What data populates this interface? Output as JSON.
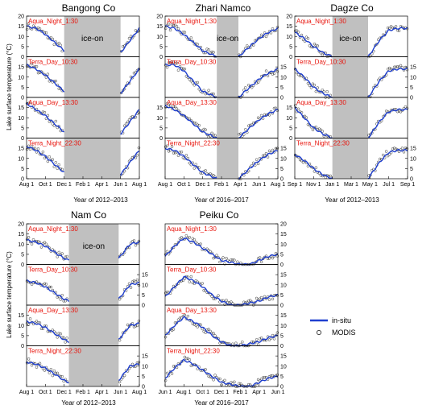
{
  "figure": {
    "y_axis_label": "Lake surface temperature (°C)",
    "legend": {
      "insitu": "in-situ",
      "modis": "MODIS"
    },
    "colors": {
      "insitu": "#1f3fcf",
      "label": "#e8140c",
      "ice": "#c0c0c0"
    }
  },
  "chart_data": [
    {
      "type": "line",
      "title": "Bangong Co",
      "xlabel": "Year of 2012–2013",
      "x_ticks": [
        "Aug 1",
        "Oct 1",
        "Dec 1",
        "Feb 1",
        "Apr 1",
        "Jun 1",
        "Aug 1"
      ],
      "x_range_months": [
        0,
        12
      ],
      "ice_on_label": "ice-on",
      "ice_on_months": [
        4.0,
        10.0
      ],
      "y_ticks": [
        0,
        5,
        10,
        15,
        20
      ],
      "y_axis_side": "left",
      "panels": [
        {
          "label": "Aqua_Night_1:30",
          "insitu": [
            [
              0,
              15
            ],
            [
              1,
              14
            ],
            [
              2,
              11
            ],
            [
              3,
              7
            ],
            [
              4,
              3
            ],
            [
              10,
              2
            ],
            [
              11,
              8
            ],
            [
              12,
              14
            ]
          ]
        },
        {
          "label": "Terra_Day_10:30",
          "insitu": [
            [
              0,
              16
            ],
            [
              1,
              14
            ],
            [
              2,
              11
            ],
            [
              3,
              7
            ],
            [
              4,
              3
            ],
            [
              10,
              2
            ],
            [
              11,
              8
            ],
            [
              12,
              14
            ]
          ]
        },
        {
          "label": "Aqua_Day_13:30",
          "insitu": [
            [
              0,
              17
            ],
            [
              1,
              14
            ],
            [
              2,
              11
            ],
            [
              3,
              7
            ],
            [
              4,
              3
            ],
            [
              10,
              2
            ],
            [
              11,
              8
            ],
            [
              12,
              14
            ]
          ]
        },
        {
          "label": "Terra_Night_22:30",
          "insitu": [
            [
              0,
              16
            ],
            [
              1,
              14
            ],
            [
              2,
              11
            ],
            [
              3,
              7
            ],
            [
              4,
              3
            ],
            [
              10,
              2
            ],
            [
              11,
              8
            ],
            [
              12,
              14
            ]
          ]
        }
      ]
    },
    {
      "type": "line",
      "title": "Zhari Namco",
      "xlabel": "Year of 2016–2017",
      "x_ticks": [
        "Aug 1",
        "Oct 1",
        "Dec 1",
        "Feb 1",
        "Apr 1",
        "Jun 1",
        "Aug 1"
      ],
      "x_range_months": [
        0,
        12
      ],
      "ice_on_label": "ice-on",
      "ice_on_months": [
        5.5,
        7.8
      ],
      "y_ticks": [
        0,
        5,
        10,
        15,
        20
      ],
      "y_axis_side": "alternate",
      "panels": [
        {
          "label": "Aqua_Night_1:30",
          "insitu": [
            [
              0,
              15
            ],
            [
              1,
              14
            ],
            [
              2,
              11
            ],
            [
              3,
              7
            ],
            [
              4,
              3
            ],
            [
              5.5,
              0
            ],
            [
              7.8,
              0
            ],
            [
              9,
              5
            ],
            [
              10,
              9
            ],
            [
              11,
              12
            ],
            [
              12,
              14
            ]
          ]
        },
        {
          "label": "Terra_Day_10:30",
          "insitu": [
            [
              0,
              16
            ],
            [
              1,
              16
            ],
            [
              2,
              13
            ],
            [
              3,
              8
            ],
            [
              4,
              3
            ],
            [
              5.5,
              0
            ],
            [
              7.8,
              0
            ],
            [
              9,
              5
            ],
            [
              10,
              9
            ],
            [
              11,
              12
            ],
            [
              12,
              14
            ]
          ]
        },
        {
          "label": "Aqua_Day_13:30",
          "insitu": [
            [
              0,
              16
            ],
            [
              1,
              14
            ],
            [
              2,
              11
            ],
            [
              3,
              7
            ],
            [
              4,
              3
            ],
            [
              5.5,
              0
            ],
            [
              7.8,
              0
            ],
            [
              9,
              5
            ],
            [
              10,
              9
            ],
            [
              11,
              12
            ],
            [
              12,
              14
            ]
          ]
        },
        {
          "label": "Terra_Night_22:30",
          "insitu": [
            [
              0,
              15
            ],
            [
              1,
              14
            ],
            [
              2,
              11
            ],
            [
              3,
              7
            ],
            [
              4,
              3
            ],
            [
              5.5,
              0
            ],
            [
              7.8,
              0
            ],
            [
              9,
              5
            ],
            [
              10,
              9
            ],
            [
              11,
              12
            ],
            [
              12,
              14
            ]
          ]
        }
      ]
    },
    {
      "type": "line",
      "title": "Dagze Co",
      "xlabel": "Year of 2012–2013",
      "x_ticks": [
        "Sep 1",
        "Nov 1",
        "Jan 1",
        "Mar 1",
        "May 1",
        "Jul 1",
        "Sep 1"
      ],
      "x_range_months": [
        0,
        12
      ],
      "ice_on_label": "ice-on",
      "ice_on_months": [
        4.0,
        7.8
      ],
      "y_ticks": [
        0,
        5,
        10,
        15,
        20
      ],
      "y_axis_side": "alternate",
      "panels": [
        {
          "label": "Aqua_Night_1:30",
          "insitu": [
            [
              0,
              12
            ],
            [
              1,
              9
            ],
            [
              2,
              5
            ],
            [
              3,
              2
            ],
            [
              4,
              0
            ],
            [
              7.8,
              0
            ],
            [
              9,
              8
            ],
            [
              10,
              13
            ],
            [
              11,
              14
            ],
            [
              12,
              14
            ]
          ]
        },
        {
          "label": "Terra_Day_10:30",
          "insitu": [
            [
              0,
              14
            ],
            [
              1,
              10
            ],
            [
              2,
              5
            ],
            [
              3,
              2
            ],
            [
              4,
              0
            ],
            [
              7.8,
              0
            ],
            [
              9,
              8
            ],
            [
              10,
              13
            ],
            [
              11,
              14
            ],
            [
              12,
              14
            ]
          ]
        },
        {
          "label": "Aqua_Day_13:30",
          "insitu": [
            [
              0,
              15
            ],
            [
              1,
              10
            ],
            [
              2,
              5
            ],
            [
              3,
              2
            ],
            [
              4,
              0
            ],
            [
              7.8,
              0
            ],
            [
              9,
              8
            ],
            [
              10,
              13
            ],
            [
              11,
              14
            ],
            [
              12,
              14
            ]
          ]
        },
        {
          "label": "Terra_Night_22:30",
          "insitu": [
            [
              0,
              12
            ],
            [
              1,
              9
            ],
            [
              2,
              5
            ],
            [
              3,
              2
            ],
            [
              4,
              0
            ],
            [
              7.8,
              0
            ],
            [
              9,
              8
            ],
            [
              10,
              13
            ],
            [
              11,
              14
            ],
            [
              12,
              14
            ]
          ]
        }
      ]
    },
    {
      "type": "line",
      "title": "Nam Co",
      "xlabel": "Year of 2012–2013",
      "x_ticks": [
        "Aug 1",
        "Oct 1",
        "Dec 1",
        "Feb 1",
        "Apr 1",
        "Jun 1",
        "Aug 1"
      ],
      "x_range_months": [
        0,
        12
      ],
      "ice_on_label": "ice-on",
      "ice_on_months": [
        4.5,
        9.8
      ],
      "y_ticks": [
        0,
        5,
        10,
        15,
        20
      ],
      "y_axis_side": "alternate",
      "panels": [
        {
          "label": "Aqua_Night_1:30",
          "insitu": [
            [
              0,
              12
            ],
            [
              1,
              11
            ],
            [
              2,
              9
            ],
            [
              3,
              6
            ],
            [
              4,
              3
            ],
            [
              4.5,
              2
            ],
            [
              9.8,
              3
            ],
            [
              11,
              10
            ],
            [
              12,
              11
            ]
          ]
        },
        {
          "label": "Terra_Day_10:30",
          "insitu": [
            [
              0,
              12
            ],
            [
              1,
              11
            ],
            [
              2,
              9
            ],
            [
              3,
              6
            ],
            [
              4,
              3
            ],
            [
              4.5,
              2
            ],
            [
              9.8,
              3
            ],
            [
              11,
              10
            ],
            [
              12,
              11
            ]
          ]
        },
        {
          "label": "Aqua_Day_13:30",
          "insitu": [
            [
              0,
              12
            ],
            [
              1,
              11
            ],
            [
              2,
              9
            ],
            [
              3,
              6
            ],
            [
              4,
              3
            ],
            [
              4.5,
              2
            ],
            [
              9.8,
              3
            ],
            [
              11,
              10
            ],
            [
              12,
              11
            ]
          ]
        },
        {
          "label": "Terra_Night_22:30",
          "insitu": [
            [
              0,
              12
            ],
            [
              1,
              11
            ],
            [
              2,
              9
            ],
            [
              3,
              6
            ],
            [
              4,
              3
            ],
            [
              4.5,
              2
            ],
            [
              9.8,
              3
            ],
            [
              11,
              10
            ],
            [
              12,
              11
            ]
          ]
        }
      ]
    },
    {
      "type": "line",
      "title": "Peiku Co",
      "xlabel": "Year of 2016–2017",
      "x_ticks": [
        "Jun 1",
        "Aug 1",
        "Oct 1",
        "Dec 1",
        "Feb 1",
        "Apr 1",
        "Jun 1"
      ],
      "x_range_months": [
        0,
        12
      ],
      "ice_on_label": "",
      "ice_on_months": null,
      "y_ticks": [
        0,
        5,
        10,
        15,
        20
      ],
      "y_axis_side": "right",
      "panels": [
        {
          "label": "Aqua_Night_1:30",
          "insitu": [
            [
              0,
              4
            ],
            [
              1,
              9
            ],
            [
              2,
              13
            ],
            [
              3,
              11
            ],
            [
              4,
              8
            ],
            [
              5,
              5
            ],
            [
              6,
              2
            ],
            [
              7,
              1
            ],
            [
              8,
              0
            ],
            [
              9,
              0
            ],
            [
              10,
              2
            ],
            [
              11,
              4
            ],
            [
              12,
              5
            ]
          ]
        },
        {
          "label": "Terra_Day_10:30",
          "insitu": [
            [
              0,
              4
            ],
            [
              1,
              9
            ],
            [
              2,
              14
            ],
            [
              3,
              12
            ],
            [
              4,
              9
            ],
            [
              5,
              5
            ],
            [
              6,
              2
            ],
            [
              7,
              0
            ],
            [
              8,
              0
            ],
            [
              9,
              1
            ],
            [
              10,
              2
            ],
            [
              11,
              4
            ],
            [
              12,
              5
            ]
          ]
        },
        {
          "label": "Aqua_Day_13:30",
          "insitu": [
            [
              0,
              5
            ],
            [
              1,
              10
            ],
            [
              2,
              14
            ],
            [
              3,
              12
            ],
            [
              4,
              9
            ],
            [
              5,
              5
            ],
            [
              6,
              2
            ],
            [
              7,
              0
            ],
            [
              8,
              0
            ],
            [
              9,
              1
            ],
            [
              10,
              2
            ],
            [
              11,
              4
            ],
            [
              12,
              5
            ]
          ]
        },
        {
          "label": "Terra_Night_22:30",
          "insitu": [
            [
              0,
              4
            ],
            [
              1,
              9
            ],
            [
              2,
              13
            ],
            [
              3,
              11
            ],
            [
              4,
              8
            ],
            [
              5,
              5
            ],
            [
              6,
              2
            ],
            [
              7,
              1
            ],
            [
              8,
              0
            ],
            [
              9,
              0
            ],
            [
              10,
              2
            ],
            [
              11,
              4
            ],
            [
              12,
              5
            ]
          ]
        }
      ]
    }
  ]
}
